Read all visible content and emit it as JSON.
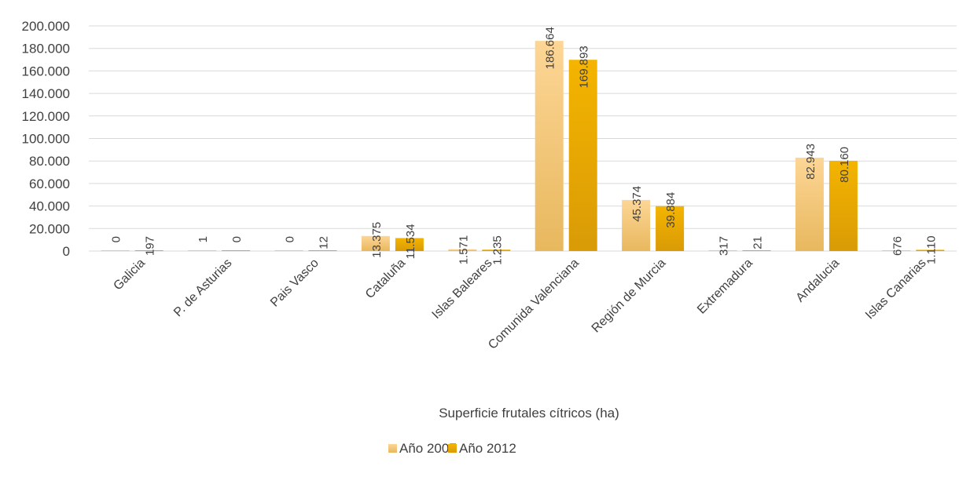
{
  "chart_data": {
    "type": "bar",
    "categories": [
      "Galicia",
      "P. de Asturias",
      "Pais Vasco",
      "Cataluña",
      "Islas Baleares",
      "Comunida Valenciana",
      "Región de Murcia",
      "Extremadura",
      "Andalucia",
      "Islas Canarias"
    ],
    "series": [
      {
        "name": "Año 2007",
        "values": [
          0,
          1,
          0,
          13375,
          1571,
          186664,
          45374,
          317,
          82943,
          676
        ],
        "labels": [
          "0",
          "1",
          "0",
          "13.375",
          "1.571",
          "186.664",
          "45.374",
          "317",
          "82.943",
          "676"
        ],
        "color_light": "#fdd696",
        "color_dark": "#e8b85e"
      },
      {
        "name": "Año 2012",
        "values": [
          197,
          0,
          12,
          11534,
          1235,
          169893,
          39884,
          21,
          80160,
          1110
        ],
        "labels": [
          "197",
          "0",
          "12",
          "11.534",
          "1.235",
          "169.893",
          "39.884",
          "21",
          "80.160",
          "1.110"
        ],
        "color_light": "#f4b400",
        "color_dark": "#d99b06"
      }
    ],
    "yticks": [
      0,
      20000,
      40000,
      60000,
      80000,
      100000,
      120000,
      140000,
      160000,
      180000,
      200000
    ],
    "ytick_labels": [
      "0",
      "20.000",
      "40.000",
      "60.000",
      "80.000",
      "100.000",
      "120.000",
      "140.000",
      "160.000",
      "180.000",
      "200.000"
    ],
    "ylim": [
      0,
      200000
    ],
    "xlabel": "Superficie frutales cítricos (ha)",
    "ylabel": "",
    "title": "",
    "grid": true,
    "legend_position": "bottom"
  }
}
